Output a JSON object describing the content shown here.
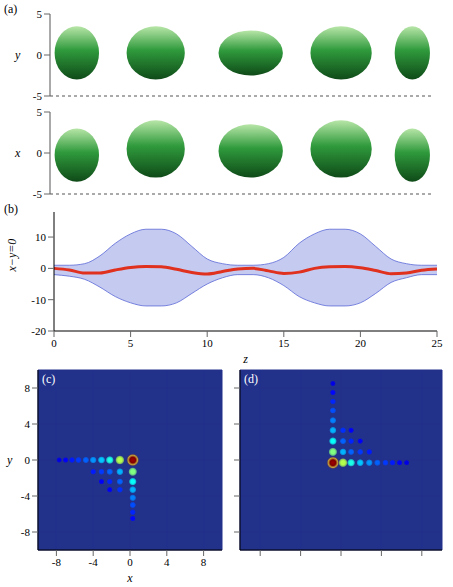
{
  "chart_data": [
    {
      "panel": "(a)",
      "type": "isosurface",
      "ylabel": "y",
      "xlabel": "x",
      "color": "#2f9a3c",
      "tick_labels": "y",
      "zlim": [
        0,
        25
      ],
      "ylim": [
        -5,
        5
      ],
      "yticks": [
        5,
        0,
        -5
      ],
      "xlim": [
        -5,
        5
      ],
      "xticks": [
        5,
        0,
        -5
      ],
      "surfaces": [
        {
          "z": [
            0.3,
            3.2
          ],
          "y": [
            -3,
            3.5
          ],
          "x": [
            -3.5,
            3
          ]
        },
        {
          "z": [
            5,
            8.8
          ],
          "y": [
            -3,
            3.5
          ],
          "x": [
            -3,
            4
          ]
        },
        {
          "z": [
            11,
            15.2
          ],
          "y": [
            -2.5,
            3
          ],
          "x": [
            -3,
            3.5
          ]
        },
        {
          "z": [
            17,
            21
          ],
          "y": [
            -3,
            3.5
          ],
          "x": [
            -3,
            4
          ]
        },
        {
          "z": [
            22.5,
            24.8
          ],
          "y": [
            -3,
            3.5
          ],
          "x": [
            -3.5,
            3
          ]
        }
      ]
    },
    {
      "panel": "(b)",
      "type": "area",
      "xlabel": "z",
      "ylabel": "x−y=0",
      "xlim": [
        0,
        25
      ],
      "xticks": [
        0,
        5,
        10,
        15,
        20,
        25
      ],
      "ylim": [
        -20,
        18
      ],
      "yticks": [
        -20,
        -10,
        0,
        10
      ],
      "x": [
        0,
        1,
        2,
        3,
        4,
        5,
        6,
        7,
        8,
        9,
        10,
        11,
        12,
        13,
        14,
        15,
        16,
        17,
        18,
        19,
        20,
        21,
        22,
        23,
        24,
        25
      ],
      "series": [
        {
          "type": "area",
          "color": "#5a68d6",
          "lower": [
            -2,
            -2.5,
            -3.5,
            -6,
            -9,
            -11,
            -12,
            -12,
            -11,
            -8,
            -5,
            -3,
            -2,
            -2,
            -3,
            -5.5,
            -9,
            -11,
            -12,
            -12,
            -11,
            -8,
            -4.5,
            -3,
            -2,
            -2
          ],
          "upper": [
            1,
            1,
            1.5,
            4,
            8,
            11,
            12.5,
            12.5,
            11,
            7,
            3,
            1.5,
            1,
            1,
            1.5,
            3.5,
            8,
            11,
            12.5,
            12.5,
            11,
            7,
            3,
            1.5,
            1,
            1
          ]
        },
        {
          "type": "line",
          "color": "#e0301e",
          "values": [
            0,
            -0.5,
            -1.5,
            -1.5,
            -0.5,
            0.3,
            0.6,
            0.5,
            -0.3,
            -1.3,
            -1.8,
            -1,
            -0.2,
            0,
            -0.8,
            -1.6,
            -1.2,
            0,
            0.5,
            0.6,
            0.2,
            -0.7,
            -1.7,
            -1.5,
            -0.6,
            -0.2
          ]
        }
      ]
    },
    {
      "panel": "(c)",
      "type": "heatmap",
      "xlabel": "x",
      "ylabel": "y",
      "color": "#22318a",
      "xlim": [
        -10,
        10
      ],
      "ylim": [
        -10,
        10
      ],
      "xticks": [
        -8,
        -4,
        0,
        4,
        8
      ],
      "yticks": [
        -8,
        -4,
        0,
        4,
        8
      ],
      "cells": [
        {
          "x": -7.7,
          "y": 0,
          "value": 0.1
        },
        {
          "x": -7,
          "y": 0,
          "value": 0.12
        },
        {
          "x": -6.3,
          "y": 0,
          "value": 0.15
        },
        {
          "x": -5.6,
          "y": 0,
          "value": 0.18
        },
        {
          "x": -4.8,
          "y": 0,
          "value": 0.22
        },
        {
          "x": -4,
          "y": 0,
          "value": 0.27
        },
        {
          "x": -3.1,
          "y": 0,
          "value": 0.32
        },
        {
          "x": -2.2,
          "y": 0,
          "value": 0.4
        },
        {
          "x": 0.3,
          "y": -6.5,
          "value": 0.13
        },
        {
          "x": 0.3,
          "y": -5.8,
          "value": 0.16
        },
        {
          "x": 0.3,
          "y": -5,
          "value": 0.2
        },
        {
          "x": 0.3,
          "y": -4.2,
          "value": 0.25
        },
        {
          "x": 0.3,
          "y": -3.3,
          "value": 0.3
        },
        {
          "x": 0.3,
          "y": -2.4,
          "value": 0.38
        },
        {
          "x": -2.2,
          "y": -3.3,
          "value": 0.12
        },
        {
          "x": -3.1,
          "y": -2.4,
          "value": 0.12
        },
        {
          "x": -1.1,
          "y": -3.3,
          "value": 0.17
        },
        {
          "x": -2.2,
          "y": -2.4,
          "value": 0.16
        },
        {
          "x": -1.1,
          "y": -2.4,
          "value": 0.22
        },
        {
          "x": -4,
          "y": -1.3,
          "value": 0.15
        },
        {
          "x": -3.1,
          "y": -1.3,
          "value": 0.18
        },
        {
          "x": -2.2,
          "y": -1.3,
          "value": 0.22
        },
        {
          "x": -1.1,
          "y": -1.3,
          "value": 0.3
        },
        {
          "x": -1.1,
          "y": 0,
          "value": 0.55
        },
        {
          "x": 0.3,
          "y": -1.3,
          "value": 0.5
        },
        {
          "x": 0.3,
          "y": 0,
          "value": 1
        }
      ]
    },
    {
      "panel": "(d)",
      "type": "heatmap",
      "color": "#22318a",
      "tick_labels": false,
      "xlim": [
        -10,
        10
      ],
      "ylim": [
        -10,
        10
      ],
      "xticks": [
        -8,
        -4,
        0,
        4,
        8
      ],
      "yticks": [
        -8,
        -4,
        0,
        4,
        8
      ],
      "cells": [
        {
          "x": 6.5,
          "y": -0.3,
          "value": 0.1
        },
        {
          "x": 5.8,
          "y": -0.3,
          "value": 0.12
        },
        {
          "x": 5.1,
          "y": -0.3,
          "value": 0.15
        },
        {
          "x": 4.4,
          "y": -0.3,
          "value": 0.18
        },
        {
          "x": 3.6,
          "y": -0.3,
          "value": 0.22
        },
        {
          "x": 2.8,
          "y": -0.3,
          "value": 0.27
        },
        {
          "x": 1.9,
          "y": -0.3,
          "value": 0.32
        },
        {
          "x": 1.0,
          "y": -0.3,
          "value": 0.4
        },
        {
          "x": -0.8,
          "y": 8.5,
          "value": 0.1
        },
        {
          "x": -0.8,
          "y": 7.5,
          "value": 0.13
        },
        {
          "x": -0.8,
          "y": 6.5,
          "value": 0.16
        },
        {
          "x": -0.8,
          "y": 5.5,
          "value": 0.2
        },
        {
          "x": -0.8,
          "y": 4.4,
          "value": 0.25
        },
        {
          "x": -0.8,
          "y": 3.3,
          "value": 0.3
        },
        {
          "x": -0.8,
          "y": 2.1,
          "value": 0.38
        },
        {
          "x": 1.0,
          "y": 3.3,
          "value": 0.12
        },
        {
          "x": 1.9,
          "y": 2.1,
          "value": 0.12
        },
        {
          "x": 0.2,
          "y": 3.3,
          "value": 0.17
        },
        {
          "x": 1.0,
          "y": 2.1,
          "value": 0.16
        },
        {
          "x": 0.2,
          "y": 2.1,
          "value": 0.22
        },
        {
          "x": 2.8,
          "y": 0.9,
          "value": 0.15
        },
        {
          "x": 1.9,
          "y": 0.9,
          "value": 0.18
        },
        {
          "x": 1.0,
          "y": 0.9,
          "value": 0.22
        },
        {
          "x": 0.2,
          "y": 0.9,
          "value": 0.3
        },
        {
          "x": 0.2,
          "y": -0.3,
          "value": 0.55
        },
        {
          "x": -0.8,
          "y": 0.9,
          "value": 0.5
        },
        {
          "x": -0.8,
          "y": -0.3,
          "value": 1
        }
      ]
    }
  ]
}
